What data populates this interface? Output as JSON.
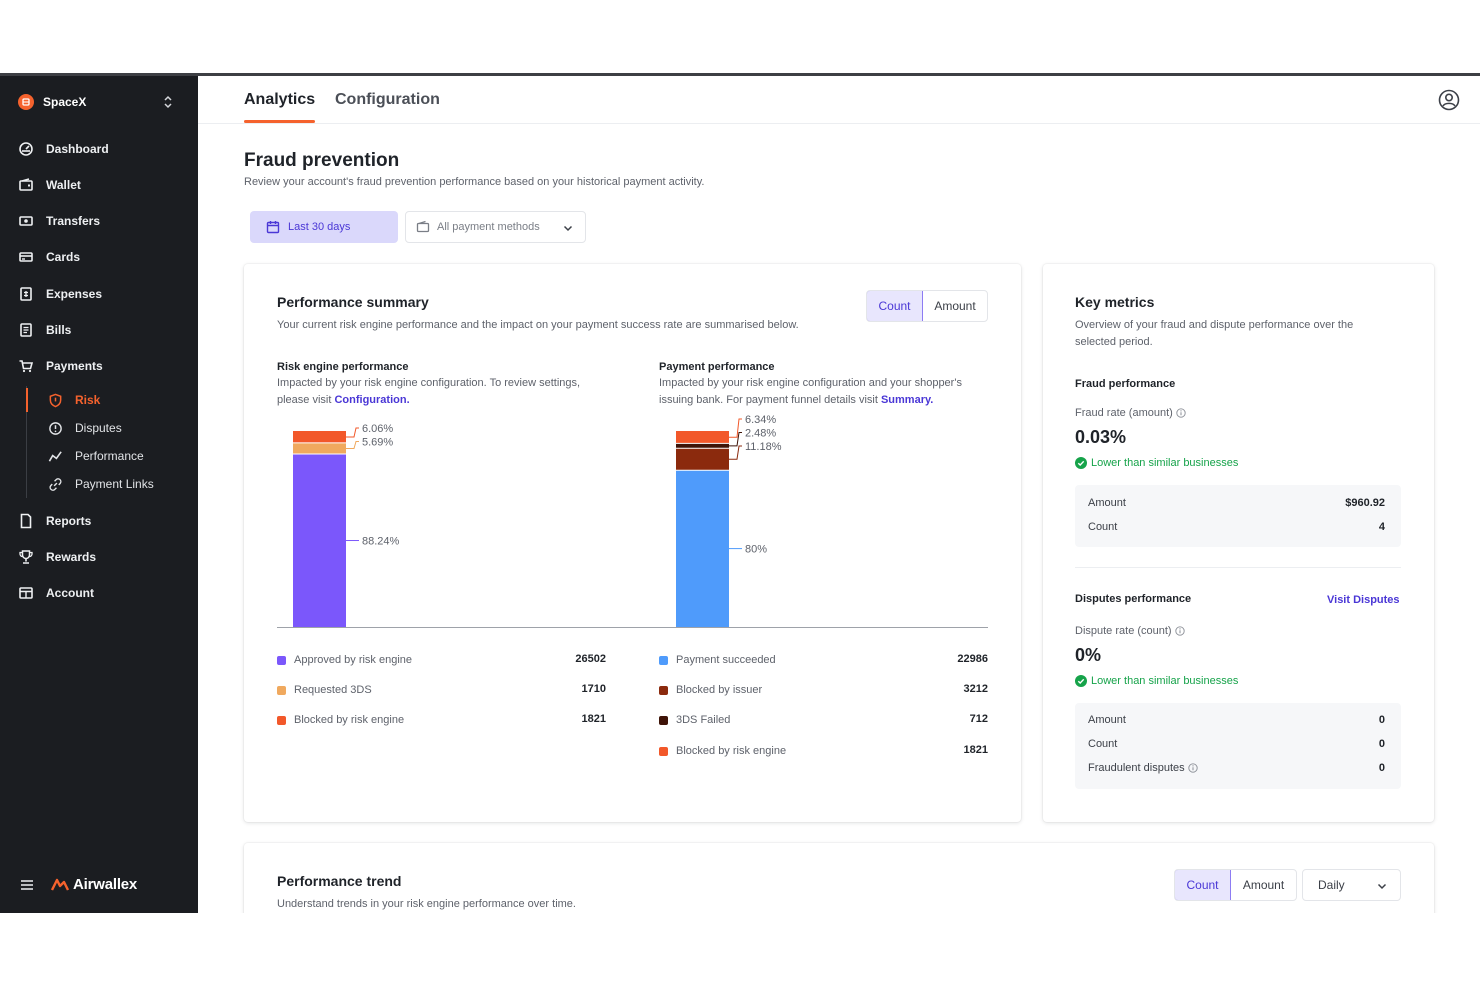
{
  "sidebar": {
    "org_name": "SpaceX",
    "items": [
      {
        "label": "Dashboard",
        "icon": "dashboard-icon"
      },
      {
        "label": "Wallet",
        "icon": "wallet-icon"
      },
      {
        "label": "Transfers",
        "icon": "transfers-icon"
      },
      {
        "label": "Cards",
        "icon": "cards-icon"
      },
      {
        "label": "Expenses",
        "icon": "expenses-icon"
      },
      {
        "label": "Bills",
        "icon": "bills-icon"
      },
      {
        "label": "Payments",
        "icon": "cart-icon"
      },
      {
        "label": "Reports",
        "icon": "reports-icon"
      },
      {
        "label": "Rewards",
        "icon": "trophy-icon"
      },
      {
        "label": "Account",
        "icon": "account-icon"
      }
    ],
    "payments_sub": [
      {
        "label": "Risk",
        "icon": "shield-icon",
        "active": true
      },
      {
        "label": "Disputes",
        "icon": "alert-circle-icon",
        "active": false
      },
      {
        "label": "Performance",
        "icon": "trend-icon",
        "active": false
      },
      {
        "label": "Payment Links",
        "icon": "link-icon",
        "active": false
      }
    ],
    "brand_name": "Airwallex"
  },
  "tabs": [
    {
      "label": "Analytics",
      "active": true
    },
    {
      "label": "Configuration",
      "active": false
    }
  ],
  "page": {
    "title": "Fraud prevention",
    "subtitle": "Review your account's fraud prevention performance based on your historical payment activity.",
    "date_filter": "Last 30 days",
    "payment_methods": "All payment methods"
  },
  "summary": {
    "title": "Performance summary",
    "subtitle": "Your current risk engine performance and the impact on your payment success rate are summarised below.",
    "toggle": [
      "Count",
      "Amount"
    ],
    "risk": {
      "title": "Risk engine performance",
      "desc": "Impacted by your risk engine configuration. To review settings, please visit ",
      "link": "Configuration."
    },
    "payment": {
      "title": "Payment performance",
      "desc": "Impacted by your risk engine configuration and your shopper's issuing bank. For payment funnel details visit ",
      "link": "Summary."
    }
  },
  "chart_data": [
    {
      "type": "bar",
      "stacked": true,
      "series": [
        {
          "name": "Approved by risk engine",
          "value": 26502,
          "percent_label": "88.24%",
          "color": "#7b57fb"
        },
        {
          "name": "Requested 3DS",
          "value": 1710,
          "percent_label": "5.69%",
          "color": "#f0a95e"
        },
        {
          "name": "Blocked by risk engine",
          "value": 1821,
          "percent_label": "6.06%",
          "color": "#f2582a"
        }
      ]
    },
    {
      "type": "bar",
      "stacked": true,
      "series": [
        {
          "name": "Payment succeeded",
          "value": 22986,
          "percent_label": "80%",
          "color": "#4f9bfb"
        },
        {
          "name": "Blocked by issuer",
          "value": 3212,
          "percent_label": "11.18%",
          "color": "#8b2a0d"
        },
        {
          "name": "3DS Failed",
          "value": 712,
          "percent_label": "2.48%",
          "color": "#3e1307"
        },
        {
          "name": "Blocked by risk engine",
          "value": 1821,
          "percent_label": "6.34%",
          "color": "#f2582a"
        }
      ]
    }
  ],
  "key_metrics": {
    "title": "Key metrics",
    "subtitle": "Overview of your fraud and dispute performance over the selected period.",
    "fraud": {
      "title": "Fraud performance",
      "rate_label": "Fraud rate (amount)",
      "rate_value": "0.03%",
      "comparison": "Lower than similar businesses",
      "rows": [
        {
          "label": "Amount",
          "value": "$960.92"
        },
        {
          "label": "Count",
          "value": "4"
        }
      ]
    },
    "disputes": {
      "title": "Disputes performance",
      "link": "Visit Disputes",
      "rate_label": "Dispute rate (count)",
      "rate_value": "0%",
      "comparison": "Lower than similar businesses",
      "rows": [
        {
          "label": "Amount",
          "value": "0"
        },
        {
          "label": "Count",
          "value": "0"
        },
        {
          "label": "Fraudulent disputes",
          "value": "0"
        }
      ]
    }
  },
  "trend": {
    "title": "Performance trend",
    "subtitle": "Understand trends in your risk engine performance over time.",
    "toggle": [
      "Count",
      "Amount"
    ],
    "period": "Daily"
  }
}
